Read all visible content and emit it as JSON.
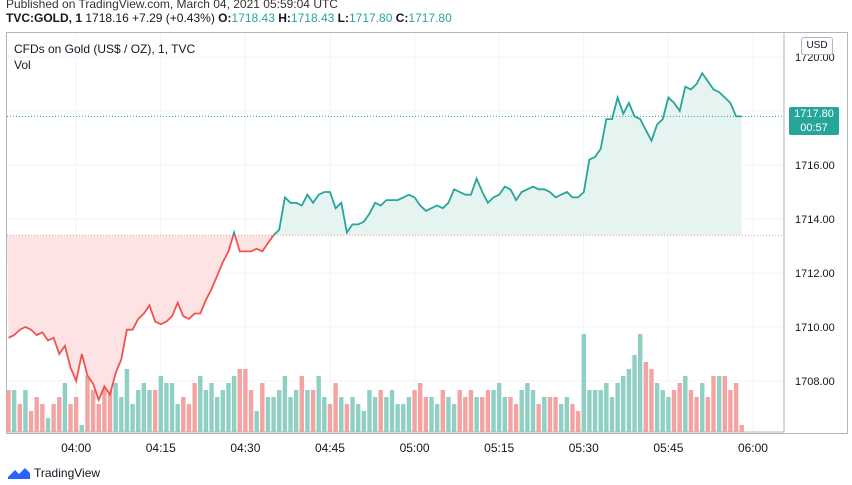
{
  "header": {
    "published": "Published on TradingView.com, March 04, 2021 05:59:04 UTC",
    "symbol": "TVC:GOLD, 1",
    "last": "1718.16",
    "change": "+7.29 (+0.43%)",
    "o_label": "O:",
    "o_value": "1718.43",
    "h_label": "H:",
    "h_value": "1718.43",
    "l_label": "L:",
    "l_value": "1717.80",
    "c_label": "C:",
    "c_value": "1717.80"
  },
  "chart_header": {
    "title": "CFDs on Gold (US$ / OZ), 1, TVC",
    "volume_label": "Vol",
    "currency": "USD"
  },
  "price_tag": {
    "price": "1717.80",
    "countdown": "00:57"
  },
  "footer": {
    "brand": "TradingView"
  },
  "colors": {
    "up": "#26a69a",
    "down": "#ef5350",
    "up_fill": "#e6f4f1",
    "down_fill": "#fde3e3",
    "vol_up": "#8fcfc4",
    "vol_down": "#f3a3a1"
  },
  "chart_data": {
    "type": "area",
    "title": "CFDs on Gold (US$ / OZ), 1, TVC",
    "xlabel": "",
    "ylabel": "USD",
    "ylim": [
      1706.0,
      1720.5
    ],
    "y_ticks": [
      1708.0,
      1710.0,
      1712.0,
      1714.0,
      1716.0,
      1718.0,
      1720.0
    ],
    "y_tick_labels": [
      "1708.00",
      "1710.00",
      "1712.00",
      "1714.00",
      "1716.00",
      "1718.00",
      "1720.00"
    ],
    "baseline": 1713.4,
    "x_ticks_label": [
      "04:00",
      "04:15",
      "04:30",
      "04:45",
      "05:00",
      "05:15",
      "05:30",
      "05:45",
      "06:00"
    ],
    "x_ticks_minute": [
      13,
      28,
      43,
      58,
      73,
      88,
      103,
      118,
      133
    ],
    "start_time": "03:47",
    "series": [
      {
        "name": "Price",
        "minute": [
          1,
          2,
          3,
          4,
          5,
          6,
          7,
          8,
          9,
          10,
          11,
          12,
          13,
          14,
          15,
          16,
          17,
          18,
          19,
          20,
          21,
          22,
          23,
          24,
          25,
          26,
          27,
          28,
          29,
          30,
          31,
          32,
          33,
          34,
          35,
          36,
          37,
          38,
          39,
          40,
          41,
          42,
          43,
          44,
          45,
          46,
          47,
          48,
          49,
          50,
          51,
          52,
          53,
          54,
          55,
          56,
          57,
          58,
          59,
          60,
          61,
          62,
          63,
          64,
          65,
          66,
          67,
          68,
          69,
          70,
          71,
          72,
          73,
          74,
          75,
          76,
          77,
          78,
          79,
          80,
          81,
          82,
          83,
          84,
          85,
          86,
          87,
          88,
          89,
          90,
          91,
          92,
          93,
          94,
          95,
          96,
          97,
          98,
          99,
          100,
          101,
          102,
          103,
          104,
          105,
          106,
          107,
          108,
          109,
          110,
          111,
          112,
          113,
          114,
          115,
          116,
          117,
          118,
          119,
          120,
          121,
          122,
          123,
          124,
          125,
          126,
          127,
          128,
          129,
          130,
          131
        ],
        "values": [
          1709.6,
          1709.7,
          1709.9,
          1710.0,
          1709.9,
          1709.7,
          1709.8,
          1709.5,
          1709.6,
          1709.0,
          1709.3,
          1708.5,
          1708.0,
          1709.0,
          1708.2,
          1707.9,
          1707.3,
          1707.8,
          1707.5,
          1708.3,
          1708.8,
          1709.9,
          1709.9,
          1710.3,
          1710.5,
          1710.8,
          1710.2,
          1710.1,
          1710.2,
          1710.4,
          1710.9,
          1710.4,
          1710.3,
          1710.5,
          1710.5,
          1711.0,
          1711.4,
          1711.9,
          1712.4,
          1712.8,
          1713.5,
          1712.8,
          1712.8,
          1712.8,
          1712.9,
          1712.8,
          1713.1,
          1713.4,
          1713.6,
          1714.8,
          1714.6,
          1714.6,
          1714.5,
          1714.9,
          1714.6,
          1714.9,
          1715.0,
          1715.0,
          1714.4,
          1714.6,
          1713.5,
          1713.8,
          1713.8,
          1713.9,
          1714.2,
          1714.6,
          1714.5,
          1714.7,
          1714.7,
          1714.7,
          1714.8,
          1714.9,
          1714.8,
          1714.5,
          1714.3,
          1714.4,
          1714.5,
          1714.4,
          1714.6,
          1715.1,
          1715.0,
          1714.9,
          1714.9,
          1715.5,
          1715.0,
          1714.6,
          1714.8,
          1714.9,
          1715.2,
          1715.1,
          1714.7,
          1715.0,
          1715.1,
          1715.2,
          1715.1,
          1715.1,
          1715.0,
          1714.8,
          1714.9,
          1715.0,
          1714.8,
          1714.8,
          1715.0,
          1716.2,
          1716.3,
          1716.6,
          1717.7,
          1717.7,
          1718.5,
          1717.9,
          1718.3,
          1717.8,
          1717.7,
          1717.3,
          1716.9,
          1717.5,
          1717.7,
          1718.5,
          1718.3,
          1718.0,
          1718.9,
          1718.8,
          1719.0,
          1719.4,
          1719.1,
          1718.8,
          1718.7,
          1718.5,
          1718.3,
          1717.8,
          1717.8
        ]
      },
      {
        "name": "Volume",
        "volume": [
          6,
          6,
          4,
          6,
          3,
          5,
          4,
          2,
          4,
          5,
          7,
          4,
          5,
          1,
          8,
          6,
          4,
          11,
          7,
          7,
          5,
          9,
          4,
          6,
          7,
          6,
          6,
          8,
          7,
          7,
          4,
          5,
          4,
          7,
          8,
          6,
          7,
          5,
          6,
          7,
          8,
          9,
          9,
          6,
          3,
          7,
          5,
          5,
          6,
          8,
          5,
          6,
          8,
          6,
          6,
          8,
          5,
          4,
          7,
          5,
          4,
          5,
          4,
          3,
          6,
          5,
          6,
          5,
          6,
          4,
          4,
          5,
          6,
          7,
          5,
          5,
          4,
          6,
          5,
          4,
          6,
          5,
          6,
          5,
          5,
          6,
          6,
          7,
          5,
          5,
          4,
          6,
          7,
          6,
          4,
          5,
          5,
          5,
          4,
          5,
          4,
          3,
          14,
          6,
          6,
          6,
          7,
          5,
          7,
          8,
          9,
          11,
          14,
          10,
          9,
          7,
          6,
          5,
          6,
          7,
          8,
          6,
          5,
          7,
          5,
          8,
          8,
          8,
          6,
          7,
          1
        ],
        "up": [
          0,
          1,
          0,
          1,
          0,
          0,
          0,
          1,
          0,
          0,
          1,
          0,
          0,
          1,
          0,
          0,
          0,
          0,
          0,
          1,
          1,
          1,
          1,
          1,
          1,
          1,
          0,
          1,
          1,
          1,
          1,
          0,
          0,
          0,
          1,
          1,
          1,
          1,
          1,
          1,
          1,
          0,
          0,
          0,
          1,
          0,
          1,
          1,
          1,
          1,
          1,
          1,
          0,
          1,
          0,
          1,
          1,
          0,
          0,
          1,
          0,
          1,
          1,
          1,
          1,
          1,
          0,
          1,
          1,
          1,
          1,
          1,
          0,
          0,
          0,
          1,
          1,
          0,
          1,
          1,
          0,
          0,
          0,
          1,
          0,
          0,
          1,
          1,
          1,
          0,
          0,
          1,
          1,
          1,
          0,
          1,
          0,
          0,
          1,
          1,
          0,
          0,
          1,
          1,
          1,
          1,
          1,
          1,
          1,
          1,
          1,
          1,
          1,
          0,
          0,
          1,
          1,
          1,
          0,
          0,
          1,
          0,
          0,
          1,
          0,
          0,
          1,
          0,
          0,
          0,
          0
        ]
      }
    ]
  }
}
